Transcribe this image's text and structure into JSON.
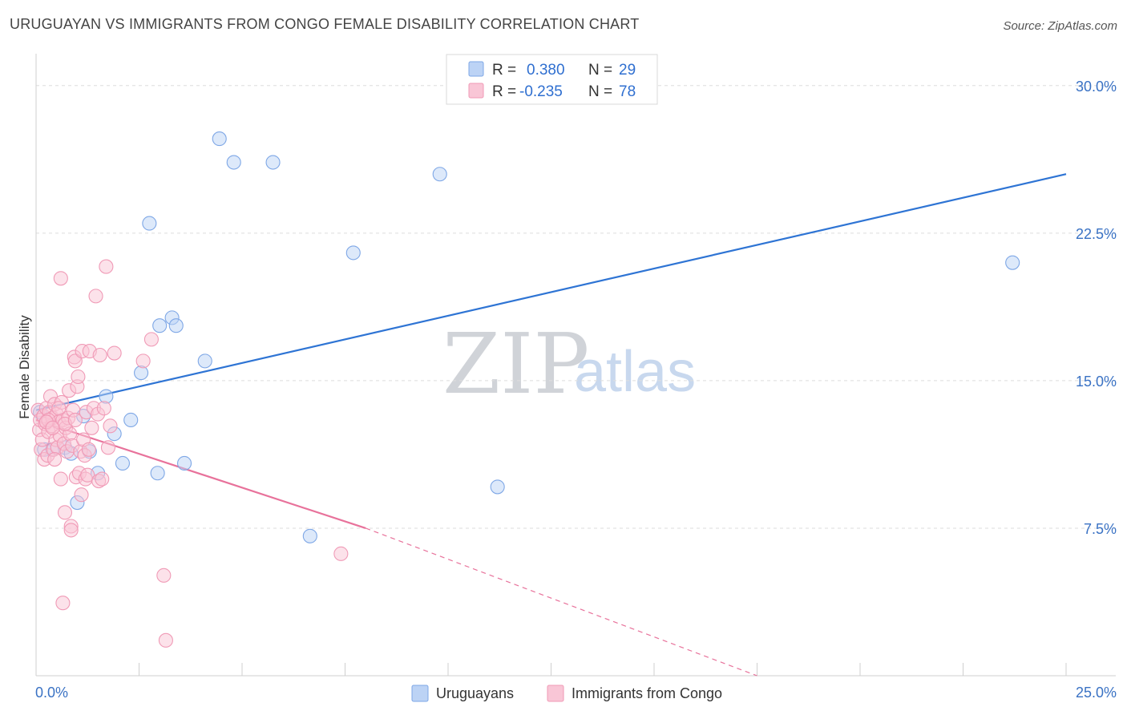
{
  "title": "URUGUAYAN VS IMMIGRANTS FROM CONGO FEMALE DISABILITY CORRELATION CHART",
  "source": "Source: ZipAtlas.com",
  "watermark": {
    "zip": "ZIP",
    "atlas": "atlas"
  },
  "stats": [
    {
      "r_label": "R =",
      "r_value": "0.380",
      "n_label": "N =",
      "n_value": "29",
      "fill": "#bcd3f5",
      "stroke": "#7ea7e6"
    },
    {
      "r_label": "R =",
      "r_value": "-0.235",
      "n_label": "N =",
      "n_value": "78",
      "fill": "#f9c6d6",
      "stroke": "#f09ab6"
    }
  ],
  "legend": [
    {
      "label": "Uruguayans",
      "fill": "#bcd3f5",
      "stroke": "#7ea7e6"
    },
    {
      "label": "Immigrants from Congo",
      "fill": "#f9c6d6",
      "stroke": "#f09ab6"
    }
  ],
  "chart_data": {
    "type": "scatter",
    "title": "URUGUAYAN VS IMMIGRANTS FROM CONGO FEMALE DISABILITY CORRELATION CHART",
    "xlabel": "",
    "ylabel": "Female Disability",
    "xlim": [
      0,
      25
    ],
    "ylim": [
      0,
      31.5
    ],
    "x_tick_labels": [
      "0.0%",
      "25.0%"
    ],
    "y_ticks": [
      7.5,
      15.0,
      22.5,
      30.0
    ],
    "y_tick_labels": [
      "7.5%",
      "15.0%",
      "22.5%",
      "30.0%"
    ],
    "grid": true,
    "legend_position": "bottom",
    "series": [
      {
        "name": "Uruguayans",
        "color": "#7ea7e6",
        "fill": "#bcd3f5",
        "trend_color": "#2e74d4",
        "trend": {
          "x0": 0.0,
          "y0": 13.5,
          "x1": 25.0,
          "y1": 25.5
        },
        "points": [
          [
            0.2,
            11.5
          ],
          [
            0.4,
            11.5
          ],
          [
            0.7,
            11.6
          ],
          [
            0.85,
            11.3
          ],
          [
            1.0,
            8.8
          ],
          [
            1.15,
            13.2
          ],
          [
            1.3,
            11.4
          ],
          [
            1.5,
            10.3
          ],
          [
            1.7,
            14.2
          ],
          [
            1.9,
            12.3
          ],
          [
            2.1,
            10.8
          ],
          [
            2.3,
            13.0
          ],
          [
            2.55,
            15.4
          ],
          [
            2.75,
            23.0
          ],
          [
            2.95,
            10.3
          ],
          [
            3.0,
            17.8
          ],
          [
            3.3,
            18.2
          ],
          [
            3.4,
            17.8
          ],
          [
            3.6,
            10.8
          ],
          [
            4.1,
            16.0
          ],
          [
            4.45,
            27.3
          ],
          [
            4.8,
            26.1
          ],
          [
            5.75,
            26.1
          ],
          [
            6.65,
            7.1
          ],
          [
            7.7,
            21.5
          ],
          [
            9.8,
            25.5
          ],
          [
            11.2,
            9.6
          ],
          [
            23.7,
            21.0
          ],
          [
            0.1,
            13.4
          ]
        ]
      },
      {
        "name": "Immigrants from Congo",
        "color": "#f09ab6",
        "fill": "#f9c6d6",
        "trend_color": "#e8729b",
        "trend": {
          "x0": 0.0,
          "y0": 13.0,
          "x1": 8.0,
          "y1": 7.5
        },
        "trend_dashed": {
          "x0": 8.0,
          "y0": 7.5,
          "x1": 17.5,
          "y1": 0.0
        },
        "points": [
          [
            0.05,
            13.5
          ],
          [
            0.08,
            12.5
          ],
          [
            0.1,
            13.0
          ],
          [
            0.12,
            11.5
          ],
          [
            0.15,
            12.0
          ],
          [
            0.18,
            13.2
          ],
          [
            0.2,
            11.0
          ],
          [
            0.22,
            12.8
          ],
          [
            0.25,
            13.6
          ],
          [
            0.28,
            11.2
          ],
          [
            0.3,
            12.4
          ],
          [
            0.32,
            13.4
          ],
          [
            0.35,
            14.2
          ],
          [
            0.38,
            12.7
          ],
          [
            0.4,
            13.1
          ],
          [
            0.42,
            11.5
          ],
          [
            0.45,
            13.8
          ],
          [
            0.48,
            12.0
          ],
          [
            0.5,
            13.3
          ],
          [
            0.52,
            11.6
          ],
          [
            0.55,
            12.9
          ],
          [
            0.58,
            12.2
          ],
          [
            0.6,
            10.0
          ],
          [
            0.62,
            13.9
          ],
          [
            0.65,
            13.0
          ],
          [
            0.68,
            11.8
          ],
          [
            0.7,
            8.3
          ],
          [
            0.72,
            12.6
          ],
          [
            0.75,
            11.4
          ],
          [
            0.78,
            13.1
          ],
          [
            0.8,
            14.5
          ],
          [
            0.82,
            12.3
          ],
          [
            0.85,
            7.6
          ],
          [
            0.88,
            11.7
          ],
          [
            0.9,
            13.5
          ],
          [
            0.93,
            16.2
          ],
          [
            0.95,
            16.0
          ],
          [
            0.97,
            10.1
          ],
          [
            1.0,
            14.7
          ],
          [
            1.02,
            15.2
          ],
          [
            1.05,
            10.3
          ],
          [
            1.08,
            11.4
          ],
          [
            1.1,
            9.2
          ],
          [
            1.12,
            16.5
          ],
          [
            1.15,
            12.0
          ],
          [
            1.18,
            11.2
          ],
          [
            1.2,
            10.0
          ],
          [
            1.22,
            13.4
          ],
          [
            1.25,
            10.2
          ],
          [
            1.28,
            11.5
          ],
          [
            1.3,
            16.5
          ],
          [
            1.35,
            12.6
          ],
          [
            1.4,
            13.6
          ],
          [
            1.45,
            19.3
          ],
          [
            1.5,
            13.3
          ],
          [
            1.52,
            9.9
          ],
          [
            1.55,
            16.3
          ],
          [
            1.6,
            10.0
          ],
          [
            1.65,
            13.6
          ],
          [
            1.7,
            20.8
          ],
          [
            1.75,
            11.6
          ],
          [
            1.8,
            12.7
          ],
          [
            1.9,
            16.4
          ],
          [
            2.6,
            16.0
          ],
          [
            2.8,
            17.1
          ],
          [
            3.1,
            5.1
          ],
          [
            3.15,
            1.8
          ],
          [
            7.4,
            6.2
          ],
          [
            0.6,
            20.2
          ],
          [
            0.65,
            3.7
          ],
          [
            0.3,
            13.0
          ],
          [
            0.45,
            11.0
          ],
          [
            0.55,
            13.6
          ],
          [
            0.7,
            12.8
          ],
          [
            0.85,
            7.4
          ],
          [
            0.95,
            13.0
          ],
          [
            0.25,
            12.9
          ],
          [
            0.4,
            12.6
          ]
        ]
      }
    ]
  }
}
